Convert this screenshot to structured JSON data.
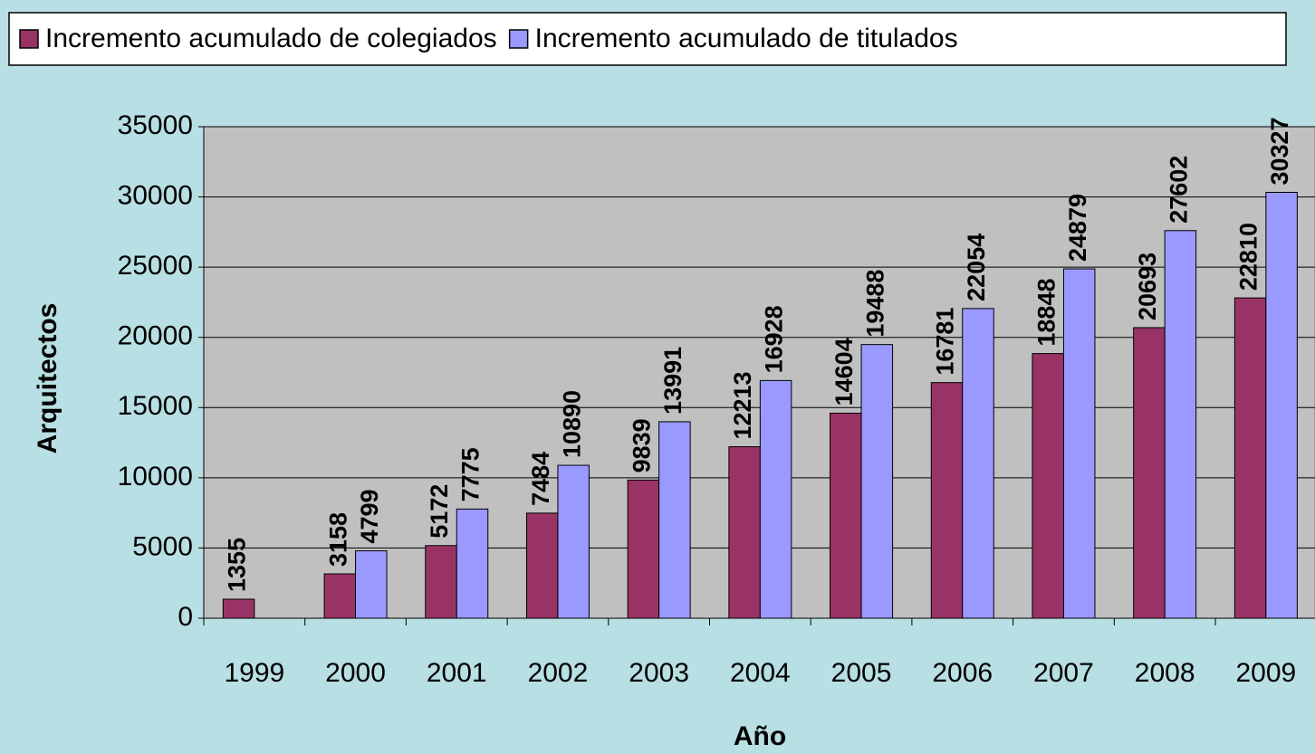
{
  "chart_data": {
    "type": "bar",
    "categories": [
      "1999",
      "2000",
      "2001",
      "2002",
      "2003",
      "2004",
      "2005",
      "2006",
      "2007",
      "2008",
      "2009"
    ],
    "series": [
      {
        "name": "Incremento acumulado de colegiados",
        "color": "#993366",
        "values": [
          1355,
          3158,
          5172,
          7484,
          9839,
          12213,
          14604,
          16781,
          18848,
          20693,
          22810
        ]
      },
      {
        "name": "Incremento acumulado de titulados",
        "color": "#9999ff",
        "values": [
          null,
          4799,
          7775,
          10890,
          13991,
          16928,
          19488,
          22054,
          24879,
          27602,
          30327
        ]
      }
    ],
    "xlabel": "Año",
    "ylabel": "Arquitectos",
    "ylim": [
      0,
      35000
    ],
    "yticks": [
      0,
      5000,
      10000,
      15000,
      20000,
      25000,
      30000,
      35000
    ],
    "grid": true,
    "legend": "top"
  }
}
